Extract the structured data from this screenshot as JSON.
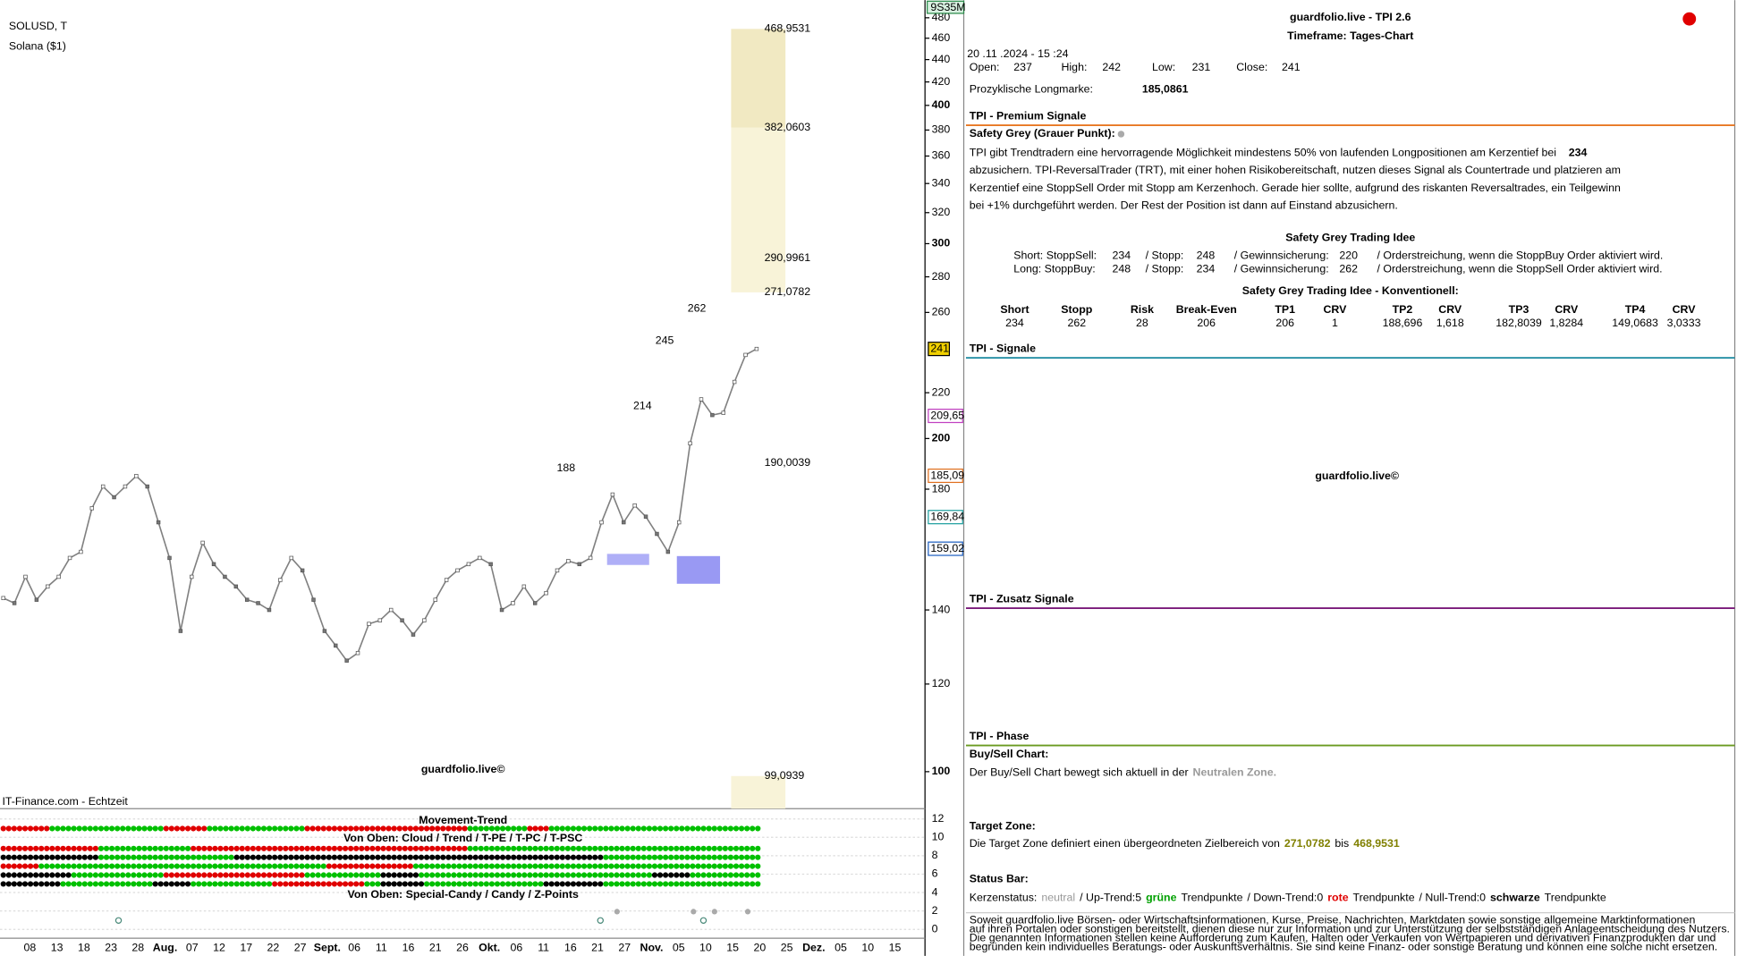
{
  "chart_data": {
    "type": "line",
    "title": "SOLUSD, T",
    "subtitle": "Solana ($1)",
    "source": "IT-Finance.com - Echtzeit",
    "watermark": "guardfolio.live©",
    "header_tag": "9S35M",
    "color": "#808080",
    "yscale": "log",
    "ylim": [
      92.6,
      498
    ],
    "yticks": [
      480,
      460,
      440,
      420,
      400,
      380,
      360,
      340,
      320,
      300,
      280,
      260,
      220,
      200,
      180,
      140,
      120,
      100
    ],
    "xtick_labels": [
      "08",
      "13",
      "18",
      "23",
      "28",
      "Aug.",
      "07",
      "12",
      "17",
      "22",
      "27",
      "Sept.",
      "06",
      "11",
      "16",
      "21",
      "26",
      "Okt.",
      "06",
      "11",
      "16",
      "21",
      "27",
      "Nov.",
      "05",
      "10",
      "15",
      "20",
      "25",
      "Dez.",
      "05",
      "10",
      "15"
    ],
    "values": [
      143.5,
      142,
      150,
      143,
      147,
      150,
      156,
      158,
      173,
      181,
      177,
      181,
      185,
      181,
      168,
      156,
      134,
      150,
      161,
      154,
      150,
      147,
      143,
      142,
      140,
      149,
      156,
      152,
      143,
      134,
      130,
      126,
      128,
      136,
      137,
      140,
      137,
      133,
      137,
      143,
      149,
      152,
      154,
      156,
      154,
      140,
      142,
      147,
      142,
      145,
      152,
      155,
      154,
      156,
      168,
      178,
      168,
      174,
      170,
      164,
      158,
      168,
      198,
      217,
      210,
      211,
      225,
      238,
      241
    ],
    "price_markers": [
      {
        "value": 241,
        "label": "241",
        "color": "#f0d000"
      },
      {
        "value": 209.65,
        "label": "209,65",
        "color": "#c040c0"
      },
      {
        "value": 185.09,
        "label": "185,09",
        "color": "#e07020"
      },
      {
        "value": 169.84,
        "label": "169,84",
        "color": "#20a0a0"
      },
      {
        "value": 159.02,
        "label": "159,02",
        "color": "#2060c0"
      }
    ],
    "levels": [
      {
        "value": 468.9531,
        "label": "468,9531",
        "color": "#999999"
      },
      {
        "value": 382.0603,
        "label": "382,0603",
        "color": "#999999"
      },
      {
        "value": 290.9961,
        "label": "290,9961",
        "color": "#e080e0"
      },
      {
        "value": 271.0782,
        "label": "271,0782",
        "color": "#999999"
      },
      {
        "value": 190.0039,
        "label": "190,0039",
        "color": "#e080e0"
      },
      {
        "value": 99.0939,
        "label": "99,0939",
        "color": "#999999"
      }
    ],
    "swing_labels": [
      262,
      245,
      214,
      188
    ],
    "indicator": {
      "title": "Movement-Trend",
      "row_title_1": "Von Oben: Cloud / Trend / T-PE / T-PC / T-PSC",
      "row_title_2": "Von Oben: Special-Candy / Candy / Z-Points",
      "ylim": [
        0,
        13
      ],
      "yticks": [
        12,
        10,
        8,
        6,
        4,
        2,
        0
      ]
    }
  },
  "panel": {
    "title": "guardfolio.live - TPI 2.6",
    "timeframe": "Timeframe: Tages-Chart",
    "timestamp": "20 .11 .2024  - 15 :24",
    "ohlc": [
      {
        "label": "Open:",
        "value": 237
      },
      {
        "label": "High:",
        "value": 242
      },
      {
        "label": "Low:",
        "value": 231
      },
      {
        "label": "Close:",
        "value": 241
      }
    ],
    "longmarke": {
      "label": "Prozyklische Longmarke:",
      "value": "185,0861"
    },
    "premium": {
      "heading": "TPI - Premium Signale",
      "safety": "Safety Grey (Grauer Punkt):",
      "paragraph": [
        "TPI gibt Trendtradern eine hervorragende Möglichkeit mindestens 50% von laufenden Longpositionen am Kerzentief bei",
        "abzusichern. TPI-ReversalTrader (TRT), mit einer hohen Risikobereitschaft, nutzen dieses Signal als Countertrade und platzieren am",
        "Kerzentief eine StoppSell Order mit Stopp am Kerzenhoch. Gerade hier sollte, aufgrund des riskanten Reversaltrades, ein Teilgewinn",
        "bei +1% durchgeführt werden. Der Rest der Position ist dann auf Einstand abzusichern."
      ],
      "paragraph_value": 234,
      "idea_title": "Safety Grey Trading Idee",
      "idea_rows": [
        [
          "Short: StoppSell:",
          234,
          "/ Stopp:",
          248,
          "/ Gewinnsicherung:",
          220,
          "/ Orderstreichung, wenn die StoppBuy Order aktiviert wird."
        ],
        [
          "Long: StoppBuy:",
          248,
          "/ Stopp:",
          234,
          "/ Gewinnsicherung:",
          262,
          "/ Orderstreichung, wenn die StoppSell Order aktiviert wird."
        ]
      ],
      "conv_title": "Safety Grey Trading Idee - Konventionell:",
      "conv_header": [
        "Short",
        "Stopp",
        "Risk",
        "Break-Even",
        "TP1",
        "CRV",
        "TP2",
        "CRV",
        "TP3",
        "CRV",
        "TP4",
        "CRV"
      ],
      "conv_values": [
        234,
        262,
        28,
        206,
        206,
        1,
        "188,696",
        "1,618",
        "182,8039",
        "1,8284",
        "149,0683",
        "3,0333"
      ]
    },
    "signale": {
      "heading": "TPI - Signale",
      "watermark": "guardfolio.live©"
    },
    "zusatz": {
      "heading": "TPI - Zusatz Signale"
    },
    "phase": {
      "heading": "TPI - Phase",
      "buysell_title": "Buy/Sell Chart:",
      "buysell_text": "Der Buy/Sell Chart bewegt sich aktuell in der",
      "buysell_zone": "Neutralen Zone.",
      "target_title": "Target Zone:",
      "target_text": "Die Target Zone definiert einen übergeordneten Zielbereich von",
      "target_low": "271,0782",
      "target_mid": "bis",
      "target_high": "468,9531",
      "status_title": "Status Bar:",
      "status": [
        "Kerzenstatus:",
        "neutral",
        "/ Up-Trend:5",
        "grüne",
        "Trendpunkte",
        "/ Down-Trend:0",
        "rote",
        "Trendpunkte",
        "/ Null-Trend:0",
        "schwarze",
        "Trendpunkte"
      ]
    },
    "disclaimer": [
      "Soweit guardfolio.live Börsen- oder Wirtschaftsinformationen, Kurse, Preise, Nachrichten, Marktdaten sowie sonstige allgemeine Marktinformationen",
      "auf ihren Portalen oder sonstigen bereitstellt, dienen diese nur zur Information und zur Unterstützung der selbstständigen Anlageentscheidung des Nutzers.",
      "Die genannten Informationen stellen keine Aufforderung zum Kaufen, Halten oder Verkaufen von Wertpapieren und derivativen Finanzprodukten dar und",
      "begründen kein individuelles Beratungs- oder Auskunftsverhältnis. Sie sind keine Finanz- oder sonstige Beratung und können eine solche nicht ersetzen."
    ]
  }
}
